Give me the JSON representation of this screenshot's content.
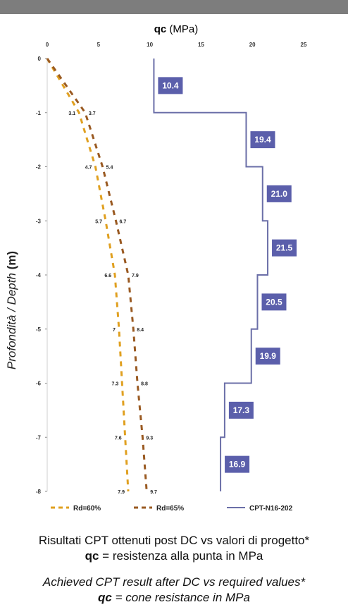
{
  "chart_data": {
    "type": "line",
    "title_bold": "qc",
    "title_rest": " (MPa)",
    "ylabel_italic": "Profondità / Depth ",
    "ylabel_bold": "(m)",
    "xlim": [
      0,
      25
    ],
    "ylim": [
      0,
      8
    ],
    "x_ticks": [
      "0",
      "5",
      "10",
      "15",
      "20",
      "25"
    ],
    "y_ticks": [
      "0",
      "-1",
      "-2",
      "-3",
      "-4",
      "-5",
      "-6",
      "-7",
      "-8"
    ],
    "depths": [
      1,
      2,
      3,
      4,
      5,
      6,
      7,
      8
    ],
    "series": [
      {
        "name": "Rd=60%",
        "color": "#e0a020",
        "style": "dashed",
        "points": [
          [
            0,
            0
          ],
          [
            3.1,
            1
          ],
          [
            4.7,
            2
          ],
          [
            5.7,
            3
          ],
          [
            6.6,
            4
          ],
          [
            7,
            5
          ],
          [
            7.3,
            6
          ],
          [
            7.6,
            7
          ],
          [
            7.9,
            8
          ]
        ],
        "labels": [
          "3.1",
          "4.7",
          "5.7",
          "6.6",
          "7",
          "7.3",
          "7.6",
          "7.9"
        ]
      },
      {
        "name": "Rd=65%",
        "color": "#9a5a22",
        "style": "dashed",
        "points": [
          [
            0,
            0
          ],
          [
            3.7,
            1
          ],
          [
            5.4,
            2
          ],
          [
            6.7,
            3
          ],
          [
            7.9,
            4
          ],
          [
            8.4,
            5
          ],
          [
            8.8,
            6
          ],
          [
            9.3,
            7
          ],
          [
            9.7,
            8
          ]
        ],
        "labels": [
          "3.7",
          "5.4",
          "6.7",
          "7.9",
          "8.4",
          "8.8",
          "9.3",
          "9.7"
        ]
      },
      {
        "name": "CPT-N16-202",
        "color": "#6b6fa8",
        "style": "solid",
        "points": [
          [
            10.4,
            0
          ],
          [
            10.4,
            1
          ],
          [
            19.4,
            1
          ],
          [
            19.4,
            2
          ],
          [
            21.0,
            2
          ],
          [
            21.0,
            3
          ],
          [
            21.5,
            3
          ],
          [
            21.5,
            4
          ],
          [
            20.5,
            4
          ],
          [
            20.5,
            5
          ],
          [
            19.9,
            5
          ],
          [
            19.9,
            6
          ],
          [
            17.3,
            6
          ],
          [
            17.3,
            7
          ],
          [
            16.9,
            7
          ],
          [
            16.9,
            8
          ]
        ],
        "segments": [
          {
            "label": "10.4",
            "value": 10.4,
            "from": 0,
            "to": 1
          },
          {
            "label": "19.4",
            "value": 19.4,
            "from": 1,
            "to": 2
          },
          {
            "label": "21.0",
            "value": 21.0,
            "from": 2,
            "to": 3
          },
          {
            "label": "21.5",
            "value": 21.5,
            "from": 3,
            "to": 4
          },
          {
            "label": "20.5",
            "value": 20.5,
            "from": 4,
            "to": 5
          },
          {
            "label": "19.9",
            "value": 19.9,
            "from": 5,
            "to": 6
          },
          {
            "label": "17.3",
            "value": 17.3,
            "from": 6,
            "to": 7
          },
          {
            "label": "16.9",
            "value": 16.9,
            "from": 7,
            "to": 8
          }
        ]
      }
    ],
    "legend": [
      "Rd=60%",
      "Rd=65%",
      "CPT-N16-202"
    ],
    "legend_placement": "bottom",
    "box_color": "#5b5fab"
  },
  "caption": {
    "it_line1": "Risultati CPT ottenuti post DC vs valori di progetto*",
    "it_line2_bold": "qc",
    "it_line2_rest": " = resistenza alla punta in MPa",
    "en_line1": "Achieved CPT result after DC vs required values*",
    "en_line2_bold": "qc",
    "en_line2_rest": " = cone resistance in MPa"
  }
}
